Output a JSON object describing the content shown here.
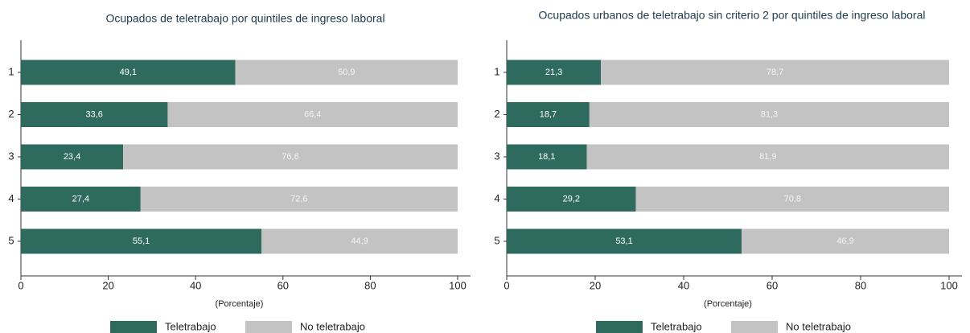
{
  "chart_data": [
    {
      "type": "bar",
      "orientation": "horizontal",
      "stacked": true,
      "title": "Ocupados de teletrabajo por quintiles de ingreso laboral",
      "xlabel": "(Porcentaje)",
      "categories": [
        "1",
        "2",
        "3",
        "4",
        "5"
      ],
      "series": [
        {
          "name": "Teletrabajo",
          "color": "#2e6b5e",
          "values": [
            49.1,
            33.6,
            23.4,
            27.4,
            55.1
          ],
          "value_labels": [
            "49,1",
            "33,6",
            "23,4",
            "27,4",
            "55,1"
          ]
        },
        {
          "name": "No teletrabajo",
          "color": "#c3c3c3",
          "values": [
            50.9,
            66.4,
            76.6,
            72.6,
            44.9
          ],
          "value_labels": [
            "50,9",
            "66,4",
            "76,6",
            "72,6",
            "44,9"
          ]
        }
      ],
      "xlim": [
        0,
        100
      ],
      "xticks": [
        0,
        20,
        40,
        60,
        80,
        100
      ],
      "legend": "bottom"
    },
    {
      "type": "bar",
      "orientation": "horizontal",
      "stacked": true,
      "title": "Ocupados urbanos de teletrabajo sin criterio 2 por quintiles de ingreso laboral",
      "xlabel": "(Porcentaje)",
      "categories": [
        "1",
        "2",
        "3",
        "4",
        "5"
      ],
      "series": [
        {
          "name": "Teletrabajo",
          "color": "#2e6b5e",
          "values": [
            21.3,
            18.7,
            18.1,
            29.2,
            53.1
          ],
          "value_labels": [
            "21,3",
            "18,7",
            "18,1",
            "29,2",
            "53,1"
          ]
        },
        {
          "name": "No teletrabajo",
          "color": "#c3c3c3",
          "values": [
            78.7,
            81.3,
            81.9,
            70.8,
            46.9
          ],
          "value_labels": [
            "78,7",
            "81,3",
            "81,9",
            "70,8",
            "46,9"
          ]
        }
      ],
      "xlim": [
        0,
        100
      ],
      "xticks": [
        0,
        20,
        40,
        60,
        80,
        100
      ],
      "legend": "bottom"
    }
  ]
}
